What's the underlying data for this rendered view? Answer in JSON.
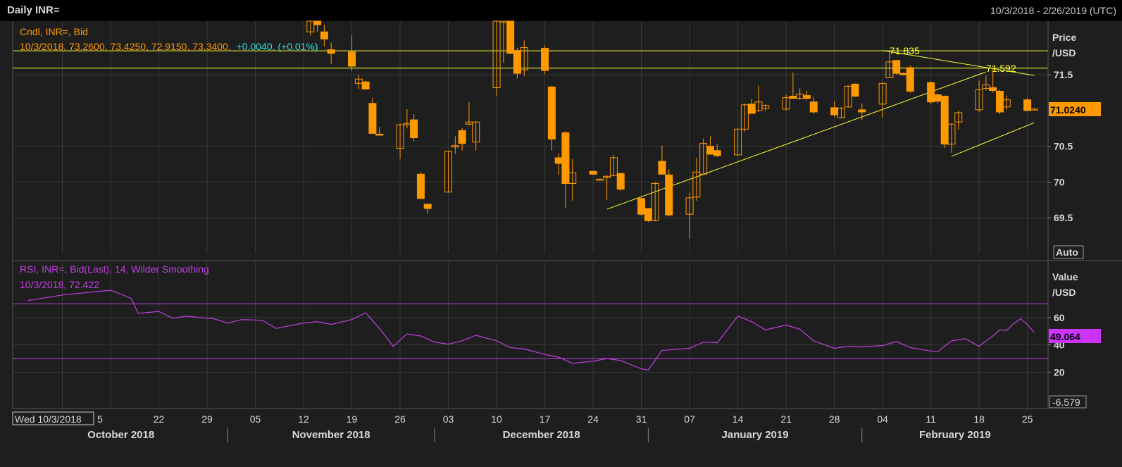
{
  "header": {
    "title": "Daily INR=",
    "date_range": "10/3/2018 - 2/26/2019 (UTC)"
  },
  "price_panel": {
    "legend_line1": "Cndl, INR=, Bid",
    "legend_values": "10/3/2018, 73.2600, 73.4250, 72.9150, 73.3400,",
    "legend_change": "+0.0040, (+0.01%)",
    "axis_title_1": "Price",
    "axis_title_2": "/USD",
    "last_value": "71.0240",
    "auto_label": "Auto",
    "level_labels": [
      "71.835",
      "71.592"
    ]
  },
  "rsi_panel": {
    "legend_line1": "RSI, INR=, Bid(Last),  14, Wilder Smoothing",
    "legend_line2": "10/3/2018, 72.422",
    "axis_title_1": "Value",
    "axis_title_2": "/USD",
    "last_value": "49.064",
    "bottom_value": "-6.579"
  },
  "x_axis": {
    "cursor_label": "Wed 10/3/2018",
    "day_ticks": [
      "5",
      "22",
      "29",
      "05",
      "12",
      "19",
      "26",
      "03",
      "10",
      "17",
      "24",
      "31",
      "07",
      "14",
      "21",
      "28",
      "04",
      "11",
      "18",
      "25"
    ],
    "months": [
      "October 2018",
      "November 2018",
      "December 2018",
      "January 2019",
      "February 2019"
    ]
  },
  "colors": {
    "background": "#1e1e1e",
    "grid": "#3a3a3a",
    "candle": "#ff9900",
    "trendline": "#ffff33",
    "rsi": "#c040e0",
    "text": "#d8d8d8"
  },
  "chart_data": [
    {
      "type": "candlestick",
      "series_name": "INR=",
      "ylim": [
        69.0,
        72.25
      ],
      "y_ticks": [
        69.5,
        70,
        70.5,
        71.5
      ],
      "horizontal_levels": [
        71.835,
        71.592
      ],
      "trendlines": [
        {
          "from": {
            "date": "2018-12-26",
            "value": 69.62
          },
          "to": {
            "date": "2019-02-19",
            "value": 71.54
          }
        },
        {
          "from": {
            "date": "2019-02-04",
            "value": 71.84
          },
          "to": {
            "date": "2019-02-26",
            "value": 71.49
          }
        },
        {
          "from": {
            "date": "2019-02-14",
            "value": 70.36
          },
          "to": {
            "date": "2019-02-26",
            "value": 70.83
          }
        }
      ],
      "candles": [
        {
          "date": "2018-11-13",
          "o": 72.1,
          "h": 72.5,
          "l": 72.05,
          "c": 72.4
        },
        {
          "date": "2018-11-14",
          "o": 72.3,
          "h": 72.4,
          "l": 72.1,
          "c": 72.2
        },
        {
          "date": "2018-11-15",
          "o": 72.1,
          "h": 72.2,
          "l": 71.9,
          "c": 72.0
        },
        {
          "date": "2018-11-16",
          "o": 71.85,
          "h": 71.95,
          "l": 71.65,
          "c": 71.8
        },
        {
          "date": "2018-11-19",
          "o": 71.82,
          "h": 72.05,
          "l": 71.55,
          "c": 71.62
        },
        {
          "date": "2018-11-20",
          "o": 71.38,
          "h": 71.5,
          "l": 71.3,
          "c": 71.44
        },
        {
          "date": "2018-11-21",
          "o": 71.4,
          "h": 71.42,
          "l": 71.29,
          "c": 71.3
        },
        {
          "date": "2018-11-22",
          "o": 71.1,
          "h": 71.18,
          "l": 70.7,
          "c": 70.68
        },
        {
          "date": "2018-11-23",
          "o": 70.67,
          "h": 70.77,
          "l": 70.66,
          "c": 70.66
        },
        {
          "date": "2018-11-26",
          "o": 70.47,
          "h": 70.82,
          "l": 70.32,
          "c": 70.8
        },
        {
          "date": "2018-11-27",
          "o": 70.8,
          "h": 71.02,
          "l": 70.75,
          "c": 70.82
        },
        {
          "date": "2018-11-28",
          "o": 70.87,
          "h": 70.95,
          "l": 70.57,
          "c": 70.62
        },
        {
          "date": "2018-11-29",
          "o": 70.11,
          "h": 70.14,
          "l": 69.76,
          "c": 69.77
        },
        {
          "date": "2018-11-30",
          "o": 69.69,
          "h": 69.7,
          "l": 69.56,
          "c": 69.63
        },
        {
          "date": "2018-12-03",
          "o": 69.86,
          "h": 70.44,
          "l": 69.86,
          "c": 70.43
        },
        {
          "date": "2018-12-04",
          "o": 70.49,
          "h": 70.64,
          "l": 70.39,
          "c": 70.51
        },
        {
          "date": "2018-12-05",
          "o": 70.72,
          "h": 70.76,
          "l": 70.44,
          "c": 70.54
        },
        {
          "date": "2018-12-06",
          "o": 70.81,
          "h": 71.12,
          "l": 70.79,
          "c": 70.84
        },
        {
          "date": "2018-12-07",
          "o": 70.56,
          "h": 70.85,
          "l": 70.44,
          "c": 70.84
        },
        {
          "date": "2018-12-10",
          "o": 71.32,
          "h": 72.3,
          "l": 71.2,
          "c": 72.25
        },
        {
          "date": "2018-12-11",
          "o": 72.25,
          "h": 72.3,
          "l": 71.67,
          "c": 72.25
        },
        {
          "date": "2018-12-12",
          "o": 72.25,
          "h": 72.25,
          "l": 71.79,
          "c": 71.8
        },
        {
          "date": "2018-12-13",
          "o": 71.84,
          "h": 71.88,
          "l": 71.45,
          "c": 71.52
        },
        {
          "date": "2018-12-14",
          "o": 71.57,
          "h": 71.98,
          "l": 71.48,
          "c": 71.88
        },
        {
          "date": "2018-12-17",
          "o": 71.87,
          "h": 71.91,
          "l": 71.51,
          "c": 71.56
        },
        {
          "date": "2018-12-18",
          "o": 71.33,
          "h": 71.34,
          "l": 70.44,
          "c": 70.6
        },
        {
          "date": "2018-12-19",
          "o": 70.34,
          "h": 70.4,
          "l": 70.1,
          "c": 70.26
        },
        {
          "date": "2018-12-20",
          "o": 70.69,
          "h": 70.71,
          "l": 69.63,
          "c": 69.98
        },
        {
          "date": "2018-12-21",
          "o": 69.98,
          "h": 70.32,
          "l": 69.74,
          "c": 70.13
        },
        {
          "date": "2018-12-24",
          "o": 70.15,
          "h": 70.15,
          "l": 70.1,
          "c": 70.11
        },
        {
          "date": "2018-12-25",
          "o": 70.04,
          "h": 70.05,
          "l": 70.03,
          "c": 70.04
        },
        {
          "date": "2018-12-26",
          "o": 70.06,
          "h": 70.1,
          "l": 69.75,
          "c": 70.08
        },
        {
          "date": "2018-12-27",
          "o": 70.09,
          "h": 70.38,
          "l": 70.08,
          "c": 70.34
        },
        {
          "date": "2018-12-28",
          "o": 70.12,
          "h": 70.13,
          "l": 69.88,
          "c": 69.9
        },
        {
          "date": "2018-12-31",
          "o": 69.77,
          "h": 69.8,
          "l": 69.53,
          "c": 69.55
        },
        {
          "date": "2019-01-01",
          "o": 69.63,
          "h": 69.64,
          "l": 69.44,
          "c": 69.46
        },
        {
          "date": "2019-01-02",
          "o": 69.46,
          "h": 70.0,
          "l": 69.45,
          "c": 69.98
        },
        {
          "date": "2019-01-03",
          "o": 70.29,
          "h": 70.51,
          "l": 70.12,
          "c": 70.11
        },
        {
          "date": "2019-01-04",
          "o": 70.1,
          "h": 70.18,
          "l": 69.52,
          "c": 69.54
        },
        {
          "date": "2019-01-07",
          "o": 69.55,
          "h": 69.85,
          "l": 69.21,
          "c": 69.78
        },
        {
          "date": "2019-01-08",
          "o": 69.79,
          "h": 70.34,
          "l": 69.74,
          "c": 70.14
        },
        {
          "date": "2019-01-09",
          "o": 70.11,
          "h": 70.61,
          "l": 70.1,
          "c": 70.54
        },
        {
          "date": "2019-01-10",
          "o": 70.5,
          "h": 70.64,
          "l": 70.38,
          "c": 70.39
        },
        {
          "date": "2019-01-11",
          "o": 70.44,
          "h": 70.53,
          "l": 70.35,
          "c": 70.37
        },
        {
          "date": "2019-01-14",
          "o": 70.38,
          "h": 70.75,
          "l": 70.37,
          "c": 70.74
        },
        {
          "date": "2019-01-15",
          "o": 70.74,
          "h": 71.1,
          "l": 70.7,
          "c": 71.08
        },
        {
          "date": "2019-01-16",
          "o": 71.09,
          "h": 71.16,
          "l": 70.97,
          "c": 70.96
        },
        {
          "date": "2019-01-17",
          "o": 71.0,
          "h": 71.35,
          "l": 70.98,
          "c": 71.12
        },
        {
          "date": "2019-01-18",
          "o": 71.03,
          "h": 71.09,
          "l": 70.99,
          "c": 71.07
        },
        {
          "date": "2019-01-21",
          "o": 71.02,
          "h": 71.22,
          "l": 71.0,
          "c": 71.18
        },
        {
          "date": "2019-01-22",
          "o": 71.2,
          "h": 71.53,
          "l": 71.17,
          "c": 71.17
        },
        {
          "date": "2019-01-23",
          "o": 71.17,
          "h": 71.31,
          "l": 71.15,
          "c": 71.23
        },
        {
          "date": "2019-01-24",
          "o": 71.21,
          "h": 71.28,
          "l": 71.15,
          "c": 71.17
        },
        {
          "date": "2019-01-25",
          "o": 71.12,
          "h": 71.19,
          "l": 70.95,
          "c": 70.98
        },
        {
          "date": "2019-01-28",
          "o": 71.04,
          "h": 71.13,
          "l": 70.91,
          "c": 70.94
        },
        {
          "date": "2019-01-29",
          "o": 70.9,
          "h": 71.05,
          "l": 70.9,
          "c": 71.03
        },
        {
          "date": "2019-01-30",
          "o": 71.05,
          "h": 71.36,
          "l": 71.04,
          "c": 71.34
        },
        {
          "date": "2019-01-31",
          "o": 71.37,
          "h": 71.38,
          "l": 71.19,
          "c": 71.2
        },
        {
          "date": "2019-02-01",
          "o": 71.01,
          "h": 71.1,
          "l": 70.87,
          "c": 70.98
        },
        {
          "date": "2019-02-04",
          "o": 71.09,
          "h": 71.39,
          "l": 70.9,
          "c": 71.38
        },
        {
          "date": "2019-02-05",
          "o": 71.46,
          "h": 71.84,
          "l": 71.46,
          "c": 71.68
        },
        {
          "date": "2019-02-06",
          "o": 71.7,
          "h": 71.71,
          "l": 71.5,
          "c": 71.52
        },
        {
          "date": "2019-02-07",
          "o": 71.52,
          "h": 71.53,
          "l": 71.49,
          "c": 71.5
        },
        {
          "date": "2019-02-08",
          "o": 71.6,
          "h": 71.63,
          "l": 71.25,
          "c": 71.27
        },
        {
          "date": "2019-02-11",
          "o": 71.39,
          "h": 71.41,
          "l": 71.09,
          "c": 71.12
        },
        {
          "date": "2019-02-12",
          "o": 71.22,
          "h": 71.24,
          "l": 71.1,
          "c": 71.13
        },
        {
          "date": "2019-02-13",
          "o": 71.2,
          "h": 71.21,
          "l": 70.48,
          "c": 70.53
        },
        {
          "date": "2019-02-14",
          "o": 70.53,
          "h": 70.82,
          "l": 70.41,
          "c": 70.81
        },
        {
          "date": "2019-02-15",
          "o": 70.84,
          "h": 71.0,
          "l": 70.73,
          "c": 70.97
        },
        {
          "date": "2019-02-18",
          "o": 71.01,
          "h": 71.42,
          "l": 70.98,
          "c": 71.29
        },
        {
          "date": "2019-02-19",
          "o": 71.31,
          "h": 71.49,
          "l": 71.28,
          "c": 71.36
        },
        {
          "date": "2019-02-20",
          "o": 71.32,
          "h": 71.59,
          "l": 71.25,
          "c": 71.28
        },
        {
          "date": "2019-02-21",
          "o": 71.27,
          "h": 71.29,
          "l": 70.95,
          "c": 70.98
        },
        {
          "date": "2019-02-22",
          "o": 71.05,
          "h": 71.21,
          "l": 71.01,
          "c": 71.15
        },
        {
          "date": "2019-02-25",
          "o": 71.15,
          "h": 71.18,
          "l": 70.99,
          "c": 71.0
        },
        {
          "date": "2019-02-26",
          "o": 71.02,
          "h": 71.04,
          "l": 71.0,
          "c": 71.02
        }
      ]
    },
    {
      "type": "line",
      "series_name": "RSI",
      "ylim": [
        -6.579,
        80
      ],
      "y_ticks": [
        20,
        40,
        60
      ],
      "bands": [
        70,
        30
      ],
      "points": [
        {
          "date": "2018-10-03",
          "v": 72.4
        },
        {
          "date": "2018-10-08",
          "v": 76.5
        },
        {
          "date": "2018-10-15",
          "v": 80.0
        },
        {
          "date": "2018-10-18",
          "v": 74.0
        },
        {
          "date": "2018-10-19",
          "v": 63.0
        },
        {
          "date": "2018-10-22",
          "v": 64.5
        },
        {
          "date": "2018-10-24",
          "v": 59.5
        },
        {
          "date": "2018-10-26",
          "v": 61.0
        },
        {
          "date": "2018-10-30",
          "v": 59.0
        },
        {
          "date": "2018-11-01",
          "v": 56.0
        },
        {
          "date": "2018-11-03",
          "v": 58.5
        },
        {
          "date": "2018-11-06",
          "v": 58.0
        },
        {
          "date": "2018-11-08",
          "v": 52.0
        },
        {
          "date": "2018-11-12",
          "v": 56.0
        },
        {
          "date": "2018-11-14",
          "v": 57.0
        },
        {
          "date": "2018-11-16",
          "v": 55.0
        },
        {
          "date": "2018-11-19",
          "v": 58.5
        },
        {
          "date": "2018-11-21",
          "v": 63.5
        },
        {
          "date": "2018-11-23",
          "v": 52.0
        },
        {
          "date": "2018-11-25",
          "v": 39.0
        },
        {
          "date": "2018-11-27",
          "v": 48.0
        },
        {
          "date": "2018-11-29",
          "v": 46.5
        },
        {
          "date": "2018-12-01",
          "v": 42.0
        },
        {
          "date": "2018-12-03",
          "v": 40.5
        },
        {
          "date": "2018-12-05",
          "v": 43.0
        },
        {
          "date": "2018-12-07",
          "v": 47.0
        },
        {
          "date": "2018-12-10",
          "v": 43.0
        },
        {
          "date": "2018-12-12",
          "v": 38.0
        },
        {
          "date": "2018-12-14",
          "v": 37.0
        },
        {
          "date": "2018-12-17",
          "v": 33.0
        },
        {
          "date": "2018-12-19",
          "v": 31.0
        },
        {
          "date": "2018-12-21",
          "v": 26.5
        },
        {
          "date": "2018-12-24",
          "v": 28.0
        },
        {
          "date": "2018-12-26",
          "v": 30.0
        },
        {
          "date": "2018-12-28",
          "v": 28.5
        },
        {
          "date": "2018-12-31",
          "v": 22.5
        },
        {
          "date": "2019-01-01",
          "v": 21.5
        },
        {
          "date": "2019-01-03",
          "v": 36.0
        },
        {
          "date": "2019-01-07",
          "v": 37.5
        },
        {
          "date": "2019-01-09",
          "v": 42.0
        },
        {
          "date": "2019-01-11",
          "v": 41.5
        },
        {
          "date": "2019-01-14",
          "v": 61.0
        },
        {
          "date": "2019-01-16",
          "v": 57.0
        },
        {
          "date": "2019-01-17",
          "v": 54.0
        },
        {
          "date": "2019-01-18",
          "v": 51.0
        },
        {
          "date": "2019-01-21",
          "v": 54.5
        },
        {
          "date": "2019-01-23",
          "v": 51.5
        },
        {
          "date": "2019-01-25",
          "v": 43.0
        },
        {
          "date": "2019-01-28",
          "v": 37.5
        },
        {
          "date": "2019-01-30",
          "v": 39.0
        },
        {
          "date": "2019-02-01",
          "v": 38.5
        },
        {
          "date": "2019-02-04",
          "v": 39.5
        },
        {
          "date": "2019-02-06",
          "v": 42.5
        },
        {
          "date": "2019-02-08",
          "v": 38.0
        },
        {
          "date": "2019-02-11",
          "v": 35.5
        },
        {
          "date": "2019-02-12",
          "v": 35.0
        },
        {
          "date": "2019-02-14",
          "v": 43.0
        },
        {
          "date": "2019-02-16",
          "v": 44.5
        },
        {
          "date": "2019-02-18",
          "v": 39.0
        },
        {
          "date": "2019-02-19",
          "v": 43.0
        },
        {
          "date": "2019-02-20",
          "v": 46.5
        },
        {
          "date": "2019-02-21",
          "v": 51.0
        },
        {
          "date": "2019-02-22",
          "v": 50.5
        },
        {
          "date": "2019-02-23",
          "v": 55.5
        },
        {
          "date": "2019-02-24",
          "v": 59.0
        },
        {
          "date": "2019-02-25",
          "v": 55.0
        },
        {
          "date": "2019-02-26",
          "v": 49.1
        }
      ]
    }
  ]
}
